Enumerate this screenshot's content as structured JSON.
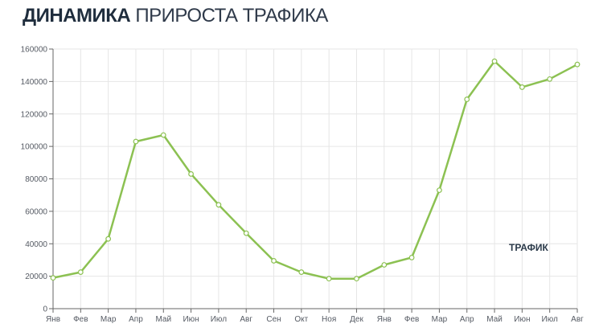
{
  "header": {
    "title_bold": "ДИНАМИКА",
    "title_light": "ПРИРОСТА ТРАФИКА"
  },
  "chart_data": {
    "type": "line",
    "categories": [
      "Янв",
      "Фев",
      "Мар",
      "Апр",
      "Май",
      "Июн",
      "Июл",
      "Авг",
      "Сен",
      "Окт",
      "Ноя",
      "Дек",
      "Янв",
      "Фев",
      "Мар",
      "Апр",
      "Май",
      "Июн",
      "Июл",
      "Авг"
    ],
    "series": [
      {
        "name": "ТРАФИК",
        "values": [
          19000,
          22500,
          43000,
          103000,
          107000,
          83000,
          64000,
          46500,
          29500,
          22500,
          18500,
          18500,
          27000,
          31500,
          73000,
          129000,
          152500,
          136500,
          141500,
          150500
        ]
      }
    ],
    "yticks": [
      0,
      20000,
      40000,
      60000,
      80000,
      100000,
      120000,
      140000,
      160000
    ],
    "ylim": [
      0,
      160000
    ],
    "grid": true,
    "legend_position": "right",
    "colors": {
      "line": "#8cc152",
      "grid": "#e6e6e6",
      "axis": "#666666"
    }
  }
}
